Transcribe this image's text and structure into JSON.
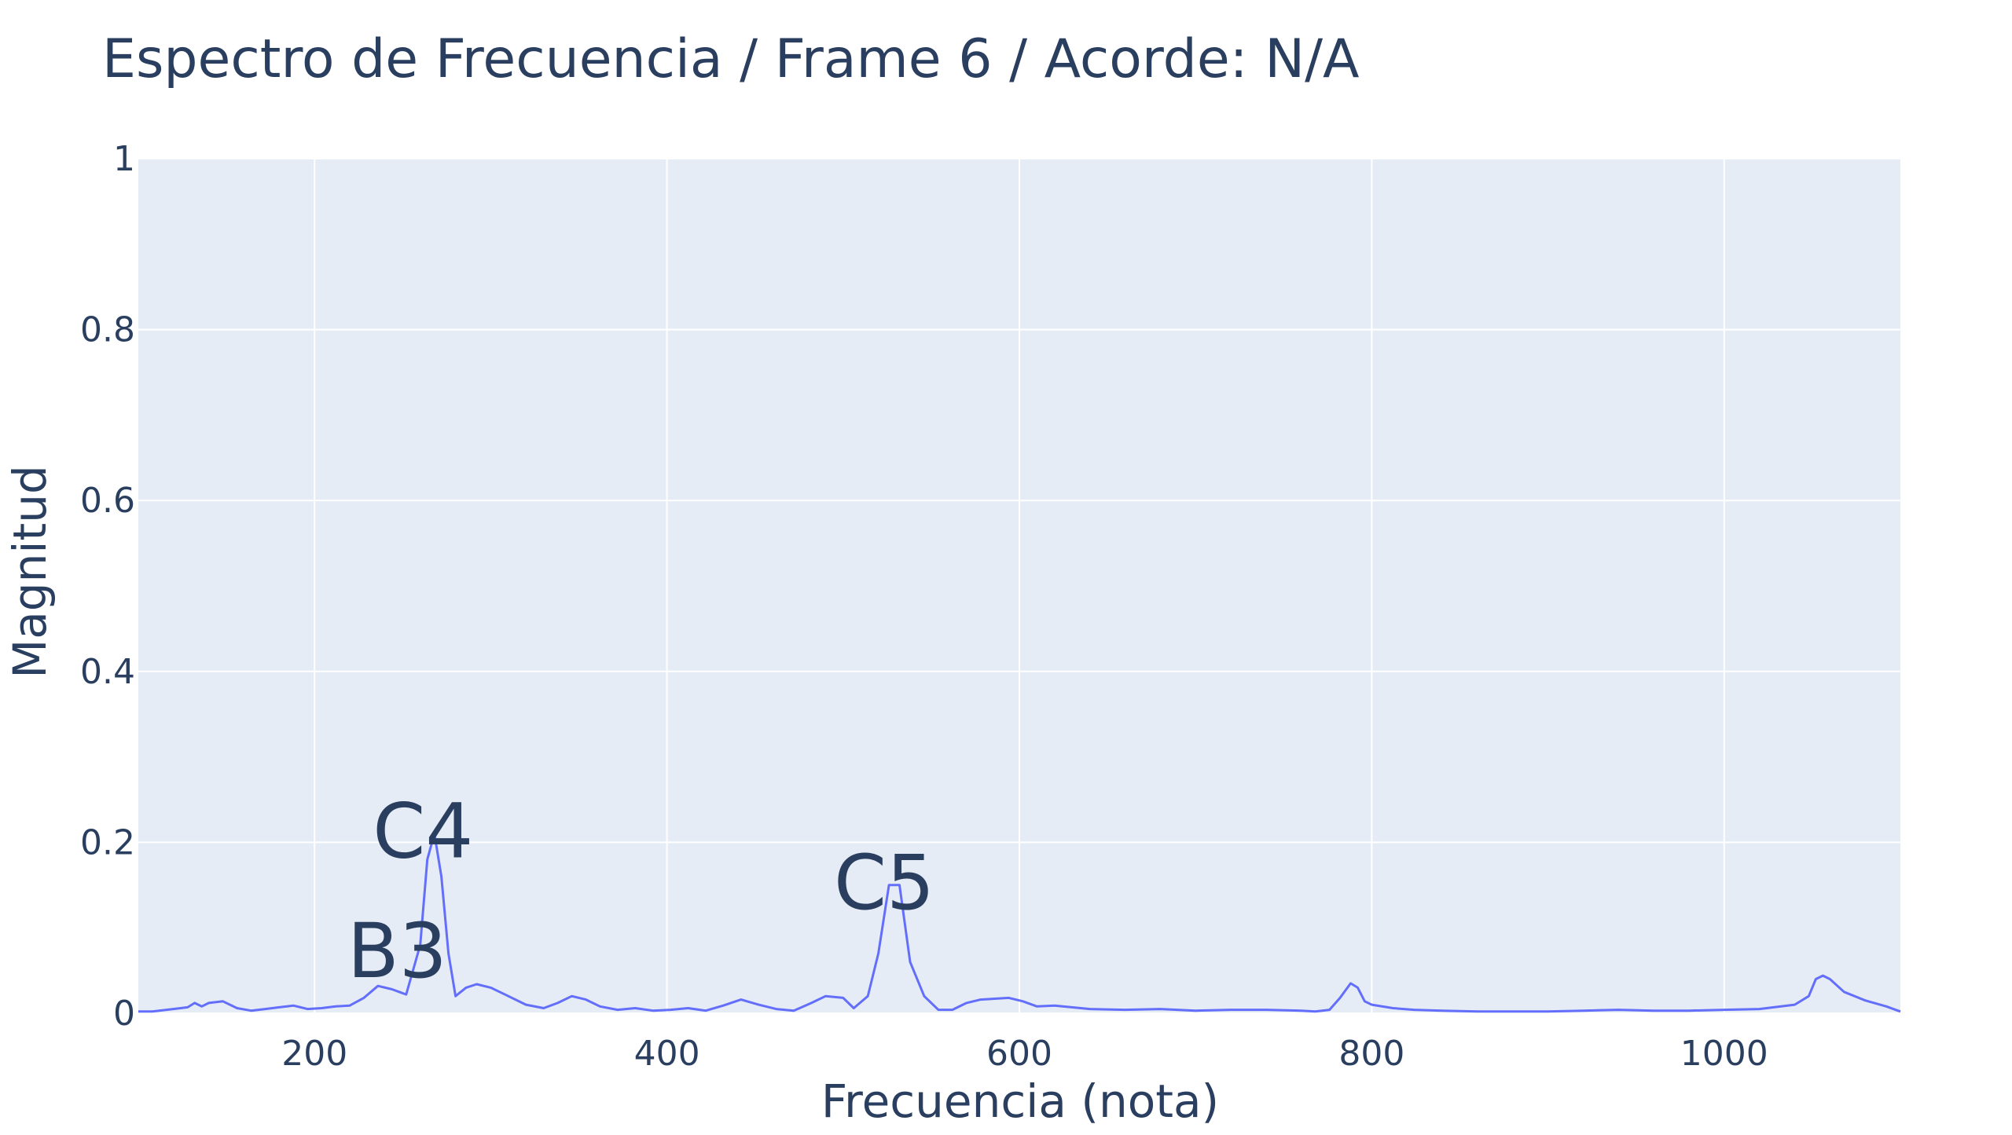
{
  "chart_data": {
    "type": "line",
    "title": "Espectro de Frecuencia / Frame 6 / Acorde: N/A",
    "xlabel": "Frecuencia (nota)",
    "ylabel": "Magnitud",
    "xlim": [
      100,
      1100
    ],
    "ylim": [
      0,
      1
    ],
    "x_ticks": [
      200,
      400,
      600,
      800,
      1000
    ],
    "x_tick_labels": [
      "200",
      "400",
      "600",
      "800",
      "1000"
    ],
    "y_ticks": [
      0,
      0.2,
      0.4,
      0.6,
      0.8,
      1
    ],
    "y_tick_labels": [
      "0",
      "0.2",
      "0.4",
      "0.6",
      "0.8",
      "1"
    ],
    "grid": true,
    "legend": "none",
    "colors": {
      "line": "#636efa",
      "plot_bg": "#e5ecf6",
      "grid": "#ffffff",
      "text": "#2a3f5f"
    },
    "series": [
      {
        "x": [
          100,
          108,
          116,
          124,
          128,
          132,
          136,
          140,
          148,
          156,
          164,
          172,
          180,
          188,
          196,
          204,
          212,
          220,
          228,
          236,
          244,
          252,
          260,
          264,
          268,
          272,
          276,
          280,
          286,
          292,
          300,
          310,
          320,
          330,
          338,
          346,
          354,
          362,
          372,
          382,
          392,
          402,
          412,
          422,
          432,
          442,
          452,
          462,
          472,
          482,
          490,
          500,
          506,
          514,
          520,
          526,
          532,
          538,
          546,
          554,
          562,
          570,
          578,
          586,
          594,
          602,
          610,
          620,
          640,
          660,
          680,
          700,
          720,
          740,
          760,
          768,
          776,
          782,
          788,
          792,
          796,
          800,
          812,
          824,
          840,
          860,
          880,
          900,
          920,
          940,
          960,
          980,
          1000,
          1020,
          1040,
          1048,
          1052,
          1056,
          1060,
          1068,
          1080,
          1092,
          1100
        ],
        "y": [
          0.002,
          0.002,
          0.004,
          0.006,
          0.007,
          0.012,
          0.008,
          0.012,
          0.014,
          0.006,
          0.003,
          0.005,
          0.007,
          0.009,
          0.005,
          0.006,
          0.008,
          0.009,
          0.018,
          0.032,
          0.028,
          0.022,
          0.08,
          0.18,
          0.21,
          0.16,
          0.07,
          0.02,
          0.03,
          0.034,
          0.03,
          0.02,
          0.01,
          0.006,
          0.012,
          0.02,
          0.016,
          0.008,
          0.004,
          0.006,
          0.003,
          0.004,
          0.006,
          0.003,
          0.009,
          0.016,
          0.01,
          0.005,
          0.003,
          0.012,
          0.02,
          0.018,
          0.006,
          0.02,
          0.07,
          0.15,
          0.15,
          0.06,
          0.02,
          0.004,
          0.004,
          0.012,
          0.016,
          0.017,
          0.018,
          0.014,
          0.008,
          0.009,
          0.005,
          0.004,
          0.005,
          0.003,
          0.004,
          0.004,
          0.003,
          0.002,
          0.004,
          0.018,
          0.035,
          0.03,
          0.014,
          0.01,
          0.006,
          0.004,
          0.003,
          0.002,
          0.002,
          0.002,
          0.003,
          0.004,
          0.003,
          0.003,
          0.004,
          0.005,
          0.01,
          0.02,
          0.04,
          0.044,
          0.04,
          0.025,
          0.015,
          0.008,
          0.002
        ]
      }
    ],
    "annotations": [
      {
        "text": "C4",
        "x": 261.6,
        "y": 0.21
      },
      {
        "text": "B3",
        "x": 246.9,
        "y": 0.07
      },
      {
        "text": "C5",
        "x": 523.3,
        "y": 0.15
      }
    ]
  }
}
